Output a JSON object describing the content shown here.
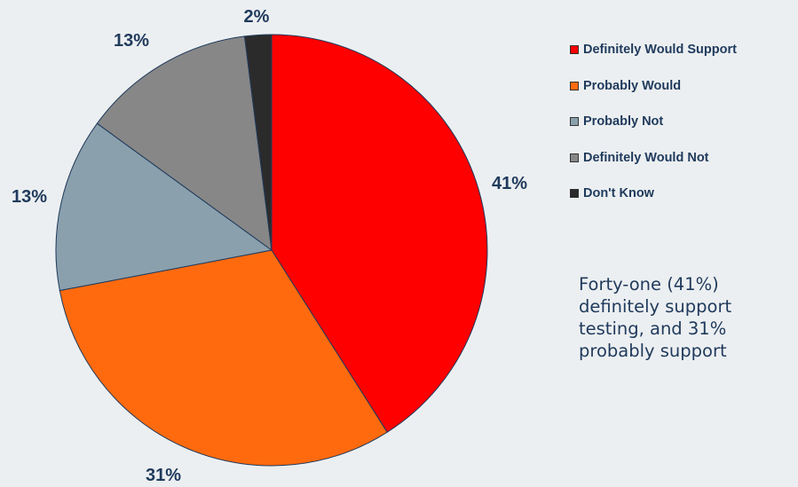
{
  "chart_data": {
    "type": "pie",
    "title": "",
    "categories": [
      "Definitely Would Support",
      "Probably Would",
      "Probably Not",
      "Definitely Would Not",
      "Don't Know"
    ],
    "values": [
      41,
      31,
      13,
      13,
      2
    ],
    "slice_labels": [
      "41%",
      "31%",
      "13%",
      "13%",
      "2%"
    ],
    "colors": [
      "#ff0000",
      "#ff6a0f",
      "#8aa0ad",
      "#878787",
      "#2b2b2b"
    ],
    "legend_placement": "right"
  },
  "caption": {
    "text": "Forty-one (41%)\ndefinitely support\ntesting, and 31%\nprobably support"
  }
}
